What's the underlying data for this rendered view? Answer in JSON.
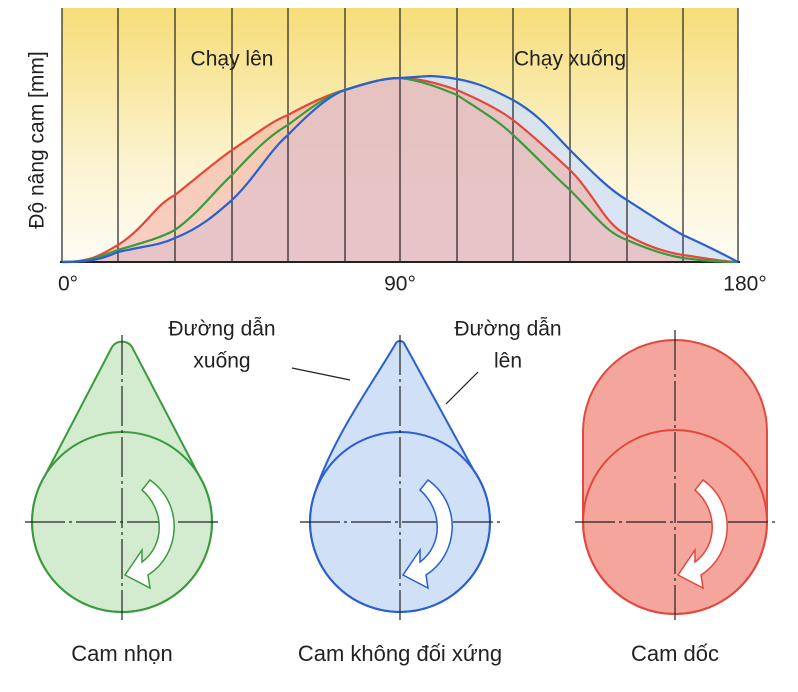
{
  "diagram": {
    "y_axis_label": "Độ nâng cam [mm]",
    "x_axis_labels": [
      "0°",
      "90°",
      "180°"
    ],
    "phase_labels": [
      "Chạy lên",
      "Chạy xuống"
    ],
    "callouts": [
      {
        "lines": [
          "Đường dẫn",
          "xuống"
        ]
      },
      {
        "lines": [
          "Đường dẫn",
          "lên"
        ]
      }
    ],
    "cams": [
      "Cam nhọn",
      "Cam không đối xứng",
      "Cam dốc"
    ]
  }
}
